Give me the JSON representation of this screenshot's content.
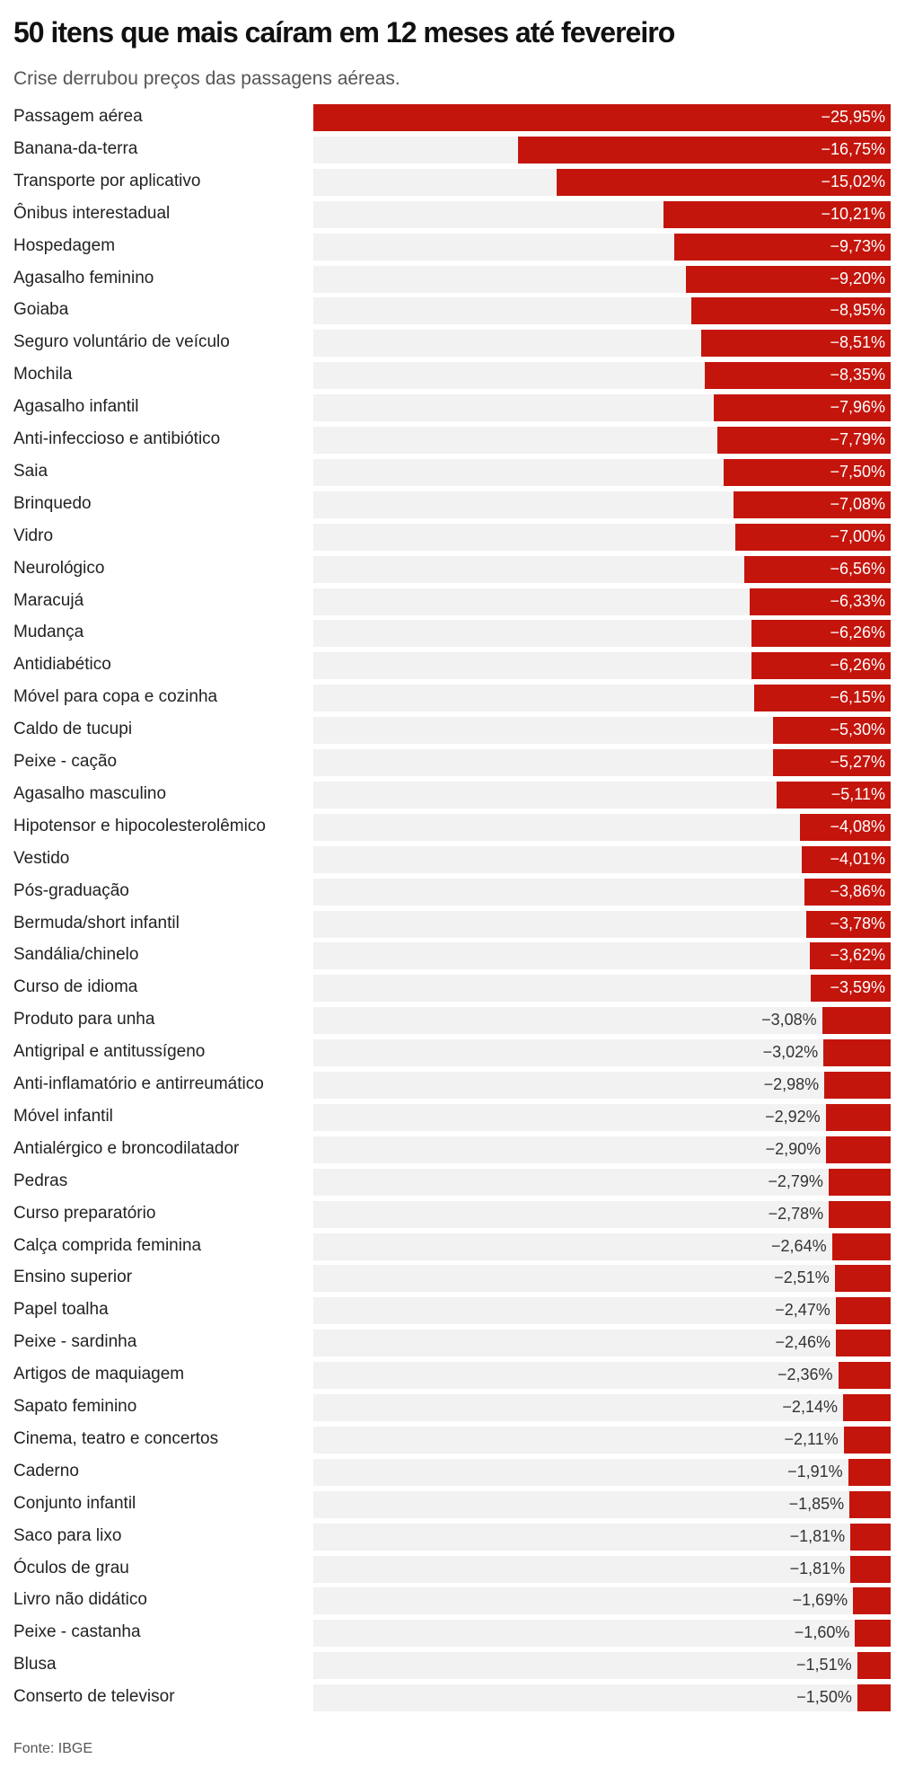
{
  "chart_data": {
    "type": "bar",
    "orientation": "horizontal",
    "title": "50 itens que mais caíram em 12 meses até fevereiro",
    "subtitle": "Crise derrubou preços das passagens aéreas.",
    "source": "Fonte: IBGE",
    "bar_color": "#c4150c",
    "track_color": "#f2f2f2",
    "unit": "%",
    "categories": [
      "Passagem aérea",
      "Banana-da-terra",
      "Transporte por aplicativo",
      "Ônibus interestadual",
      "Hospedagem",
      "Agasalho feminino",
      "Goiaba",
      "Seguro voluntário de veículo",
      "Mochila",
      "Agasalho infantil",
      "Anti-infeccioso e antibiótico",
      "Saia",
      "Brinquedo",
      "Vidro",
      "Neurológico",
      "Maracujá",
      "Mudança",
      "Antidiabético",
      "Móvel para copa e cozinha",
      "Caldo de tucupi",
      "Peixe - cação",
      "Agasalho masculino",
      "Hipotensor e hipocolesterolêmico",
      "Vestido",
      "Pós-graduação",
      "Bermuda/short infantil",
      "Sandália/chinelo",
      "Curso de idioma",
      "Produto para unha",
      "Antigripal e antitussígeno",
      "Anti-inflamatório e antirreumático",
      "Móvel infantil",
      "Antialérgico e broncodilatador",
      "Pedras",
      "Curso preparatório",
      "Calça comprida feminina",
      "Ensino superior",
      "Papel toalha",
      "Peixe - sardinha",
      "Artigos de maquiagem",
      "Sapato feminino",
      "Cinema, teatro e concertos",
      "Caderno",
      "Conjunto infantil",
      "Saco para lixo",
      "Óculos de grau",
      "Livro não didático",
      "Peixe - castanha",
      "Blusa",
      "Conserto de televisor"
    ],
    "values": [
      -25.95,
      -16.75,
      -15.02,
      -10.21,
      -9.73,
      -9.2,
      -8.95,
      -8.51,
      -8.35,
      -7.96,
      -7.79,
      -7.5,
      -7.08,
      -7.0,
      -6.56,
      -6.33,
      -6.26,
      -6.26,
      -6.15,
      -5.3,
      -5.27,
      -5.11,
      -4.08,
      -4.01,
      -3.86,
      -3.78,
      -3.62,
      -3.59,
      -3.08,
      -3.02,
      -2.98,
      -2.92,
      -2.9,
      -2.79,
      -2.78,
      -2.64,
      -2.51,
      -2.47,
      -2.46,
      -2.36,
      -2.14,
      -2.11,
      -1.91,
      -1.85,
      -1.81,
      -1.81,
      -1.69,
      -1.6,
      -1.51,
      -1.5
    ],
    "value_labels": [
      "−25,95%",
      "−16,75%",
      "−15,02%",
      "−10,21%",
      "−9,73%",
      "−9,20%",
      "−8,95%",
      "−8,51%",
      "−8,35%",
      "−7,96%",
      "−7,79%",
      "−7,50%",
      "−7,08%",
      "−7,00%",
      "−6,56%",
      "−6,33%",
      "−6,26%",
      "−6,26%",
      "−6,15%",
      "−5,30%",
      "−5,27%",
      "−5,11%",
      "−4,08%",
      "−4,01%",
      "−3,86%",
      "−3,78%",
      "−3,62%",
      "−3,59%",
      "−3,08%",
      "−3,02%",
      "−2,98%",
      "−2,92%",
      "−2,90%",
      "−2,79%",
      "−2,78%",
      "−2,64%",
      "−2,51%",
      "−2,47%",
      "−2,46%",
      "−2,36%",
      "−2,14%",
      "−2,11%",
      "−1,91%",
      "−1,85%",
      "−1,81%",
      "−1,81%",
      "−1,69%",
      "−1,60%",
      "−1,51%",
      "−1,50%"
    ],
    "xlim": [
      -25.95,
      0
    ]
  }
}
